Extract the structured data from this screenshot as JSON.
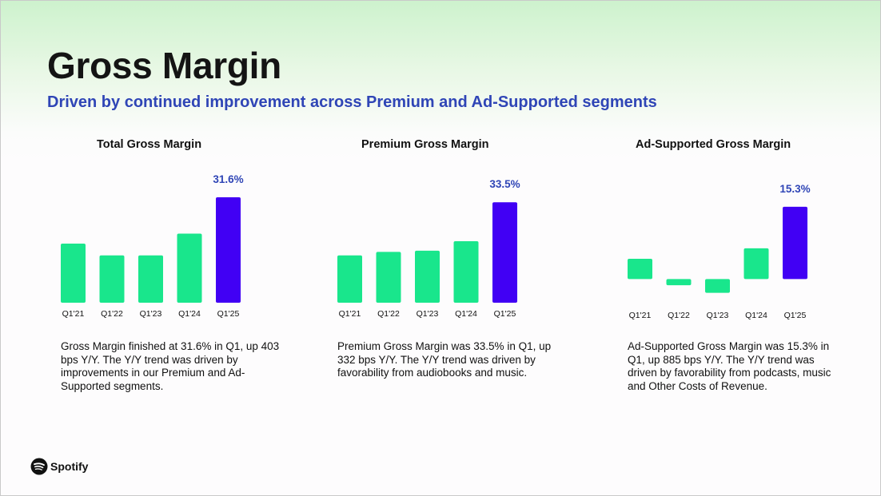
{
  "slide": {
    "title": "Gross Margin",
    "subtitle": "Driven by continued improvement across Premium and Ad-Supported segments",
    "brand": "Spotify"
  },
  "colors": {
    "green_bar": "#19e68c",
    "highlight_bar": "#4100f4",
    "label_blue": "#2f45b6",
    "subtitle_blue": "#2f45b6"
  },
  "panels": [
    {
      "title": "Total Gross Margin",
      "description": "Gross Margin finished at 31.6% in Q1, up 403 bps Y/Y. The Y/Y trend was driven by improvements in our Premium and Ad-Supported segments."
    },
    {
      "title": "Premium Gross Margin",
      "description": "Premium Gross Margin was 33.5% in Q1, up 332 bps Y/Y. The Y/Y trend was driven by favorability from audiobooks and music."
    },
    {
      "title": "Ad-Supported Gross Margin",
      "description": "Ad-Supported Gross Margin was 15.3% in Q1, up 885 bps Y/Y. The Y/Y trend was driven by favorability from podcasts, music and Other Costs of Revenue."
    }
  ],
  "chart_data": [
    {
      "type": "bar",
      "title": "Total Gross Margin",
      "categories": [
        "Q1'21",
        "Q1'22",
        "Q1'23",
        "Q1'24",
        "Q1'25"
      ],
      "values": [
        26.5,
        25.2,
        25.2,
        27.6,
        31.6
      ],
      "data_labels": [
        "",
        "",
        "",
        "",
        "31.6%"
      ],
      "highlight_index": 4,
      "unit": "%",
      "ylim": [
        20,
        33
      ]
    },
    {
      "type": "bar",
      "title": "Premium Gross Margin",
      "categories": [
        "Q1'21",
        "Q1'22",
        "Q1'23",
        "Q1'24",
        "Q1'25"
      ],
      "values": [
        29.0,
        29.3,
        29.4,
        30.2,
        33.5
      ],
      "data_labels": [
        "",
        "",
        "",
        "",
        "33.5%"
      ],
      "highlight_index": 4,
      "unit": "%",
      "ylim": [
        25,
        35
      ]
    },
    {
      "type": "bar",
      "title": "Ad-Supported Gross Margin",
      "categories": [
        "Q1'21",
        "Q1'22",
        "Q1'23",
        "Q1'24",
        "Q1'25"
      ],
      "values": [
        4.3,
        -1.3,
        -2.9,
        6.5,
        15.3
      ],
      "data_labels": [
        "",
        "",
        "",
        "",
        "15.3%"
      ],
      "highlight_index": 4,
      "unit": "%",
      "ylim": [
        -5,
        20
      ]
    }
  ]
}
